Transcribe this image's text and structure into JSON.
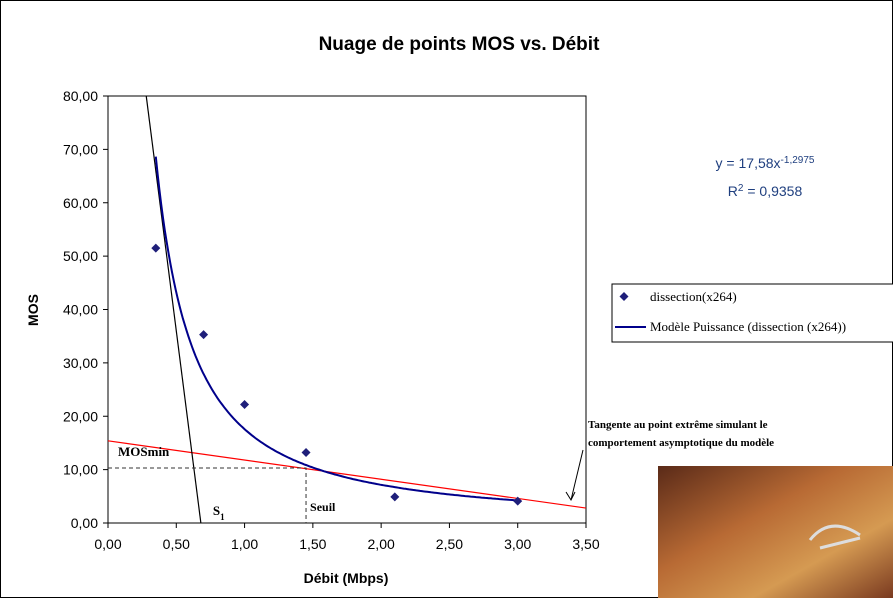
{
  "chart_data": {
    "type": "scatter",
    "title": "Nuage de points MOS vs. Débit",
    "x_label": "Débit (Mbps)",
    "y_label": "MOS",
    "xlim": [
      0,
      3.5
    ],
    "ylim": [
      0,
      80
    ],
    "xticks": [
      {
        "value": 0,
        "label": "0,00"
      },
      {
        "value": 0.5,
        "label": "0,50"
      },
      {
        "value": 1,
        "label": "1,00"
      },
      {
        "value": 1.5,
        "label": "1,50"
      },
      {
        "value": 2,
        "label": "2,00"
      },
      {
        "value": 2.5,
        "label": "2,50"
      },
      {
        "value": 3,
        "label": "3,00"
      },
      {
        "value": 3.5,
        "label": "3,50"
      }
    ],
    "yticks": [
      {
        "value": 0,
        "label": "0,00"
      },
      {
        "value": 10,
        "label": "10,00"
      },
      {
        "value": 20,
        "label": "20,00"
      },
      {
        "value": 30,
        "label": "30,00"
      },
      {
        "value": 40,
        "label": "40,00"
      },
      {
        "value": 50,
        "label": "50,00"
      },
      {
        "value": 60,
        "label": "60,00"
      },
      {
        "value": 70,
        "label": "70,00"
      },
      {
        "value": 80,
        "label": "80,00"
      }
    ],
    "grid": false,
    "series": [
      {
        "name": "dissection(x264)",
        "color": "#1f1f7a",
        "x": [
          0.35,
          0.7,
          1.0,
          1.45,
          2.1,
          3.0
        ],
        "values": [
          51.5,
          35.3,
          22.2,
          13.2,
          4.9,
          4.1
        ]
      }
    ],
    "trendline": {
      "name": "Modèle Puissance (dissection (x264))",
      "color": "#00008b",
      "lhs": "y = ",
      "coefficient": {
        "value": 17.58,
        "label": "17,58"
      },
      "variable": "x",
      "exponent": {
        "value": -1.2975,
        "label": "-1,2975"
      },
      "r2_symbol": "R",
      "r2_power": "2",
      "r2_equals": " = ",
      "r2": {
        "value": 0.9358,
        "label": "0,9358"
      }
    },
    "tangent": {
      "text": [
        "Tangente au point extrême simulant le",
        "comportement asymptotique du modèle"
      ],
      "color": "#ff0000",
      "x": [
        0,
        3.5
      ],
      "values": [
        15.4,
        2.8
      ]
    },
    "steep_tangent": {
      "symbol": "S",
      "subscript": "1",
      "color": "#000000",
      "x": [
        0.28,
        0.68
      ],
      "values": [
        80,
        0
      ]
    },
    "threshold": {
      "x_label": "Seuil",
      "y_label": "MOSmin",
      "x": 1.45,
      "value": 10.3
    },
    "legend": "right"
  }
}
